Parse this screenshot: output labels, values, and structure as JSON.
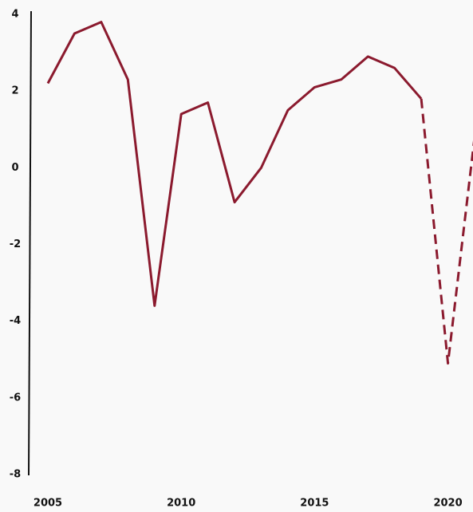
{
  "chart_data": {
    "type": "line",
    "title": "",
    "xlabel": "",
    "ylabel": "",
    "xlim": [
      2005,
      2021
    ],
    "ylim": [
      -8,
      4
    ],
    "x_ticks": [
      2005,
      2010,
      2015,
      2020
    ],
    "x_tick_labels": [
      "2005",
      "2010",
      "2015",
      "2020"
    ],
    "y_ticks": [
      4,
      2,
      0,
      -2,
      -4,
      -6,
      -8
    ],
    "y_tick_labels": [
      "4",
      "2",
      "0",
      "-2",
      "-4",
      "-6",
      "-8"
    ],
    "grid": false,
    "legend": "none",
    "color": "#8b1a2e",
    "series": [
      {
        "style": "solid",
        "x": [
          2005,
          2006,
          2007,
          2008,
          2009,
          2010,
          2011,
          2012,
          2013,
          2014,
          2015,
          2016,
          2017,
          2018,
          2019
        ],
        "values": [
          2.2,
          3.5,
          3.8,
          2.3,
          -3.6,
          1.4,
          1.7,
          -0.9,
          0.0,
          1.5,
          2.1,
          2.3,
          2.9,
          2.6,
          1.8
        ]
      },
      {
        "style": "dashed",
        "x": [
          2019,
          2020,
          2021
        ],
        "values": [
          1.8,
          -5.1,
          0.8
        ]
      }
    ]
  }
}
